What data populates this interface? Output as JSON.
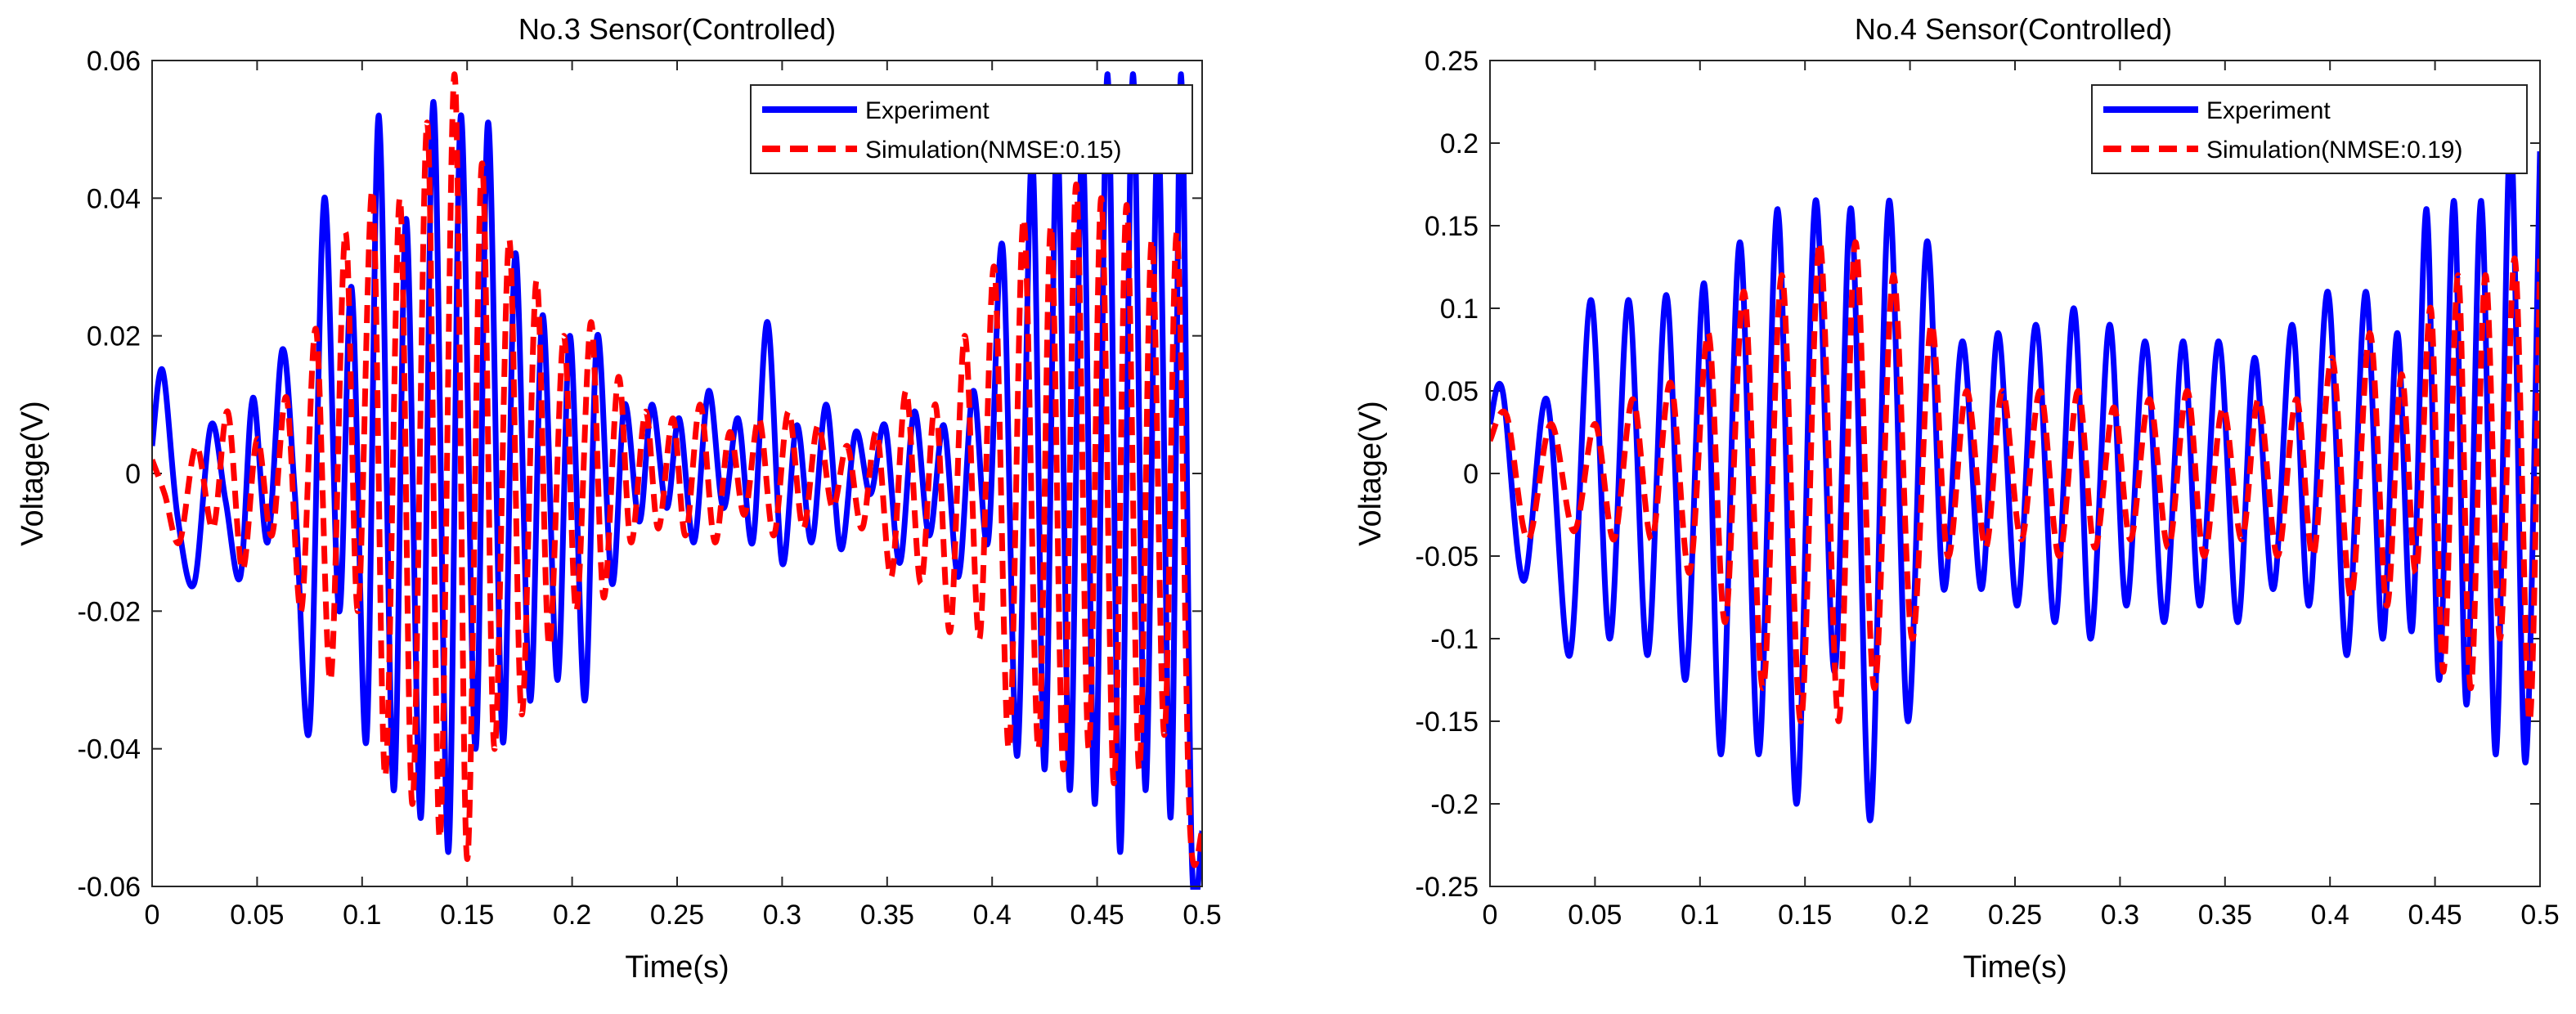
{
  "chart_data": [
    {
      "type": "line",
      "title": "No.3 Sensor(Controlled)",
      "xlabel": "Time(s)",
      "ylabel": "Voltage(V)",
      "xlim": [
        0,
        0.5
      ],
      "ylim": [
        -0.06,
        0.06
      ],
      "xticks": [
        0,
        0.05,
        0.1,
        0.15,
        0.2,
        0.25,
        0.3,
        0.35,
        0.4,
        0.45,
        0.5
      ],
      "xtick_labels": [
        "0",
        "0.05",
        "0.1",
        "0.15",
        "0.2",
        "0.25",
        "0.3",
        "0.35",
        "0.4",
        "0.45",
        "0.5"
      ],
      "yticks": [
        -0.06,
        -0.04,
        -0.02,
        0,
        0.02,
        0.04,
        0.06
      ],
      "ytick_labels": [
        "-0.06",
        "-0.04",
        "-0.02",
        "0",
        "0.02",
        "0.04",
        "0.06"
      ],
      "legend_position": "top-right",
      "series": [
        {
          "name": "Experiment",
          "color": "#0000ff",
          "style": "solid",
          "x": [
            0,
            0.005,
            0.012,
            0.02,
            0.028,
            0.035,
            0.042,
            0.048,
            0.055,
            0.062,
            0.068,
            0.075,
            0.082,
            0.089,
            0.095,
            0.102,
            0.108,
            0.115,
            0.121,
            0.128,
            0.134,
            0.141,
            0.147,
            0.154,
            0.16,
            0.167,
            0.173,
            0.18,
            0.186,
            0.193,
            0.199,
            0.206,
            0.212,
            0.219,
            0.225,
            0.232,
            0.238,
            0.245,
            0.251,
            0.258,
            0.265,
            0.272,
            0.279,
            0.286,
            0.293,
            0.3,
            0.307,
            0.314,
            0.321,
            0.328,
            0.335,
            0.342,
            0.349,
            0.356,
            0.363,
            0.37,
            0.377,
            0.384,
            0.391,
            0.398,
            0.405,
            0.412,
            0.419,
            0.425,
            0.431,
            0.437,
            0.443,
            0.449,
            0.455,
            0.461,
            0.467,
            0.473,
            0.479,
            0.485,
            0.49,
            0.495,
            0.5
          ],
          "y": [
            0.004,
            0.015,
            -0.006,
            -0.016,
            0.007,
            -0.004,
            -0.015,
            0.011,
            -0.01,
            0.018,
            -0.003,
            -0.037,
            0.04,
            -0.02,
            0.027,
            -0.039,
            0.052,
            -0.046,
            0.037,
            -0.05,
            0.054,
            -0.055,
            0.052,
            -0.04,
            0.051,
            -0.039,
            0.032,
            -0.033,
            0.023,
            -0.03,
            0.02,
            -0.033,
            0.02,
            -0.016,
            0.01,
            -0.007,
            0.01,
            -0.005,
            0.008,
            -0.01,
            0.012,
            -0.005,
            0.008,
            -0.01,
            0.022,
            -0.013,
            0.007,
            -0.01,
            0.01,
            -0.011,
            0.006,
            -0.003,
            0.007,
            -0.013,
            0.009,
            -0.009,
            0.007,
            -0.015,
            0.012,
            -0.01,
            0.033,
            -0.041,
            0.046,
            -0.043,
            0.049,
            -0.046,
            0.048,
            -0.048,
            0.058,
            -0.055,
            0.058,
            -0.046,
            0.05,
            -0.05,
            0.058,
            -0.055,
            -0.052
          ]
        },
        {
          "name": "Simulation(NMSE:0.15)",
          "color": "#ff0000",
          "style": "dashed",
          "x": [
            0,
            0.006,
            0.013,
            0.021,
            0.029,
            0.036,
            0.043,
            0.05,
            0.057,
            0.064,
            0.071,
            0.078,
            0.085,
            0.092,
            0.098,
            0.105,
            0.111,
            0.118,
            0.124,
            0.131,
            0.137,
            0.144,
            0.15,
            0.157,
            0.163,
            0.17,
            0.176,
            0.183,
            0.189,
            0.196,
            0.202,
            0.209,
            0.215,
            0.222,
            0.228,
            0.235,
            0.241,
            0.248,
            0.254,
            0.261,
            0.268,
            0.275,
            0.282,
            0.289,
            0.296,
            0.303,
            0.31,
            0.317,
            0.324,
            0.331,
            0.338,
            0.345,
            0.352,
            0.359,
            0.366,
            0.373,
            0.38,
            0.387,
            0.394,
            0.401,
            0.408,
            0.415,
            0.422,
            0.428,
            0.434,
            0.44,
            0.446,
            0.452,
            0.458,
            0.464,
            0.47,
            0.476,
            0.482,
            0.488,
            0.494,
            0.5
          ],
          "y": [
            0.002,
            -0.003,
            -0.01,
            0.004,
            -0.008,
            0.009,
            -0.014,
            0.005,
            -0.009,
            0.011,
            -0.02,
            0.021,
            -0.03,
            0.035,
            -0.02,
            0.041,
            -0.044,
            0.04,
            -0.048,
            0.051,
            -0.053,
            0.058,
            -0.056,
            0.045,
            -0.04,
            0.034,
            -0.035,
            0.028,
            -0.025,
            0.02,
            -0.02,
            0.022,
            -0.018,
            0.014,
            -0.01,
            0.009,
            -0.008,
            0.008,
            -0.009,
            0.01,
            -0.01,
            0.006,
            -0.006,
            0.008,
            -0.009,
            0.009,
            -0.008,
            0.007,
            -0.005,
            0.004,
            -0.008,
            0.006,
            -0.015,
            0.012,
            -0.016,
            0.01,
            -0.023,
            0.02,
            -0.024,
            0.03,
            -0.04,
            0.037,
            -0.04,
            0.036,
            -0.043,
            0.042,
            -0.04,
            0.04,
            -0.045,
            0.039,
            -0.043,
            0.034,
            -0.038,
            0.035,
            -0.05,
            -0.052
          ]
        }
      ]
    },
    {
      "type": "line",
      "title": "No.4 Sensor(Controlled)",
      "xlabel": "Time(s)",
      "ylabel": "Voltage(V)",
      "xlim": [
        0,
        0.5
      ],
      "ylim": [
        -0.25,
        0.25
      ],
      "xticks": [
        0,
        0.05,
        0.1,
        0.15,
        0.2,
        0.25,
        0.3,
        0.35,
        0.4,
        0.45,
        0.5
      ],
      "xtick_labels": [
        "0",
        "0.05",
        "0.1",
        "0.15",
        "0.2",
        "0.25",
        "0.3",
        "0.35",
        "0.4",
        "0.45",
        "0.5"
      ],
      "yticks": [
        -0.25,
        -0.2,
        -0.15,
        -0.1,
        -0.05,
        0,
        0.05,
        0.1,
        0.15,
        0.2,
        0.25
      ],
      "ytick_labels": [
        "-0.25",
        "-0.2",
        "-0.15",
        "-0.1",
        "-0.05",
        "0",
        "0.05",
        "0.1",
        "0.15",
        "0.2",
        "0.25"
      ],
      "legend_position": "top-right",
      "series": [
        {
          "name": "Experiment",
          "color": "#0000ff",
          "style": "solid",
          "x": [
            0,
            0.006,
            0.016,
            0.027,
            0.038,
            0.048,
            0.057,
            0.066,
            0.075,
            0.084,
            0.093,
            0.102,
            0.11,
            0.119,
            0.128,
            0.137,
            0.146,
            0.155,
            0.164,
            0.172,
            0.181,
            0.19,
            0.199,
            0.208,
            0.216,
            0.225,
            0.234,
            0.242,
            0.251,
            0.26,
            0.269,
            0.278,
            0.286,
            0.295,
            0.303,
            0.312,
            0.321,
            0.33,
            0.338,
            0.347,
            0.356,
            0.364,
            0.373,
            0.382,
            0.39,
            0.399,
            0.408,
            0.417,
            0.425,
            0.432,
            0.439,
            0.446,
            0.452,
            0.459,
            0.465,
            0.472,
            0.479,
            0.486,
            0.493,
            0.5
          ],
          "y": [
            0.03,
            0.05,
            -0.065,
            0.045,
            -0.11,
            0.105,
            -0.1,
            0.105,
            -0.11,
            0.108,
            -0.125,
            0.115,
            -0.17,
            0.14,
            -0.17,
            0.16,
            -0.2,
            0.165,
            -0.12,
            0.16,
            -0.21,
            0.165,
            -0.15,
            0.14,
            -0.07,
            0.08,
            -0.07,
            0.085,
            -0.08,
            0.09,
            -0.09,
            0.1,
            -0.1,
            0.09,
            -0.08,
            0.08,
            -0.09,
            0.08,
            -0.08,
            0.08,
            -0.09,
            0.07,
            -0.07,
            0.09,
            -0.08,
            0.11,
            -0.11,
            0.11,
            -0.1,
            0.085,
            -0.095,
            0.16,
            -0.125,
            0.165,
            -0.14,
            0.165,
            -0.17,
            0.205,
            -0.175,
            0.195
          ]
        },
        {
          "name": "Simulation(NMSE:0.19)",
          "color": "#ff0000",
          "style": "dashed",
          "x": [
            0,
            0.008,
            0.018,
            0.029,
            0.04,
            0.05,
            0.059,
            0.068,
            0.077,
            0.086,
            0.095,
            0.104,
            0.112,
            0.121,
            0.13,
            0.139,
            0.148,
            0.157,
            0.166,
            0.174,
            0.183,
            0.192,
            0.201,
            0.21,
            0.218,
            0.227,
            0.236,
            0.244,
            0.253,
            0.262,
            0.271,
            0.28,
            0.288,
            0.297,
            0.305,
            0.314,
            0.323,
            0.332,
            0.34,
            0.349,
            0.358,
            0.366,
            0.375,
            0.384,
            0.392,
            0.401,
            0.41,
            0.419,
            0.427,
            0.434,
            0.441,
            0.448,
            0.454,
            0.461,
            0.467,
            0.474,
            0.481,
            0.488,
            0.495,
            0.5
          ],
          "y": [
            0.02,
            0.035,
            -0.04,
            0.03,
            -0.035,
            0.03,
            -0.04,
            0.045,
            -0.04,
            0.055,
            -0.06,
            0.085,
            -0.09,
            0.11,
            -0.13,
            0.12,
            -0.15,
            0.14,
            -0.15,
            0.14,
            -0.13,
            0.12,
            -0.1,
            0.09,
            -0.05,
            0.05,
            -0.045,
            0.05,
            -0.04,
            0.05,
            -0.05,
            0.05,
            -0.045,
            0.04,
            -0.04,
            0.045,
            -0.045,
            0.05,
            -0.05,
            0.04,
            -0.04,
            0.045,
            -0.05,
            0.045,
            -0.05,
            0.07,
            -0.075,
            0.085,
            -0.08,
            0.06,
            -0.06,
            0.1,
            -0.12,
            0.12,
            -0.13,
            0.12,
            -0.1,
            0.13,
            -0.15,
            0.13
          ]
        }
      ]
    }
  ]
}
